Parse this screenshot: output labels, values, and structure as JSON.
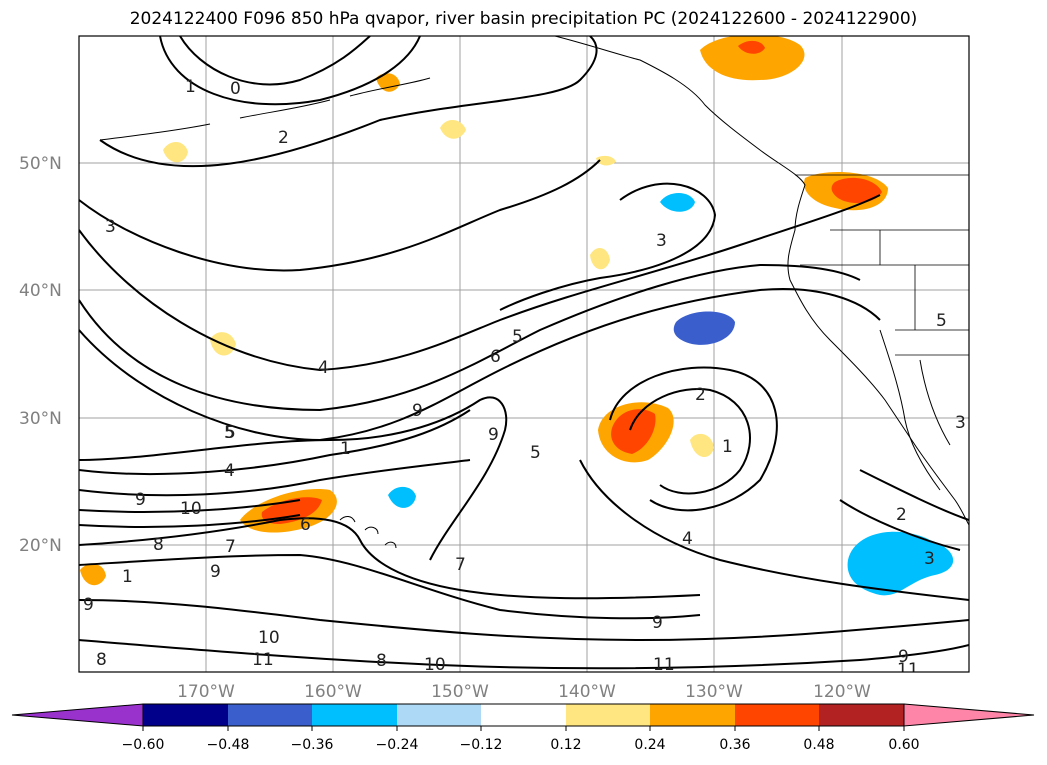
{
  "title": "2024122400 F096 850 hPa qvapor, river basin precipitation PC (2024122600 - 2024122900)",
  "latitude_labels": [
    "50°N",
    "40°N",
    "30°N",
    "20°N"
  ],
  "longitude_labels": [
    "170°W",
    "160°W",
    "150°W",
    "140°W",
    "130°W",
    "120°W"
  ],
  "colorbar": {
    "ticks": [
      "−0.60",
      "−0.48",
      "−0.36",
      "−0.24",
      "−0.12",
      "0.12",
      "0.24",
      "0.36",
      "0.48",
      "0.60"
    ],
    "colors": [
      "#9932cc",
      "#00008b",
      "#3a5fcd",
      "#00bfff",
      "#add8f6",
      "#ffffff",
      "#ffe680",
      "#ffa500",
      "#ff4500",
      "#b22222",
      "#ff85a8"
    ]
  },
  "contour_labels": [
    "0",
    "1",
    "2",
    "3",
    "4",
    "5",
    "6",
    "9",
    "10",
    "8",
    "7",
    "9",
    "10",
    "11",
    "8",
    "10",
    "11",
    "9",
    "3",
    "5",
    "6",
    "9",
    "5",
    "2",
    "1",
    "4",
    "3",
    "2",
    "3",
    "9",
    "11",
    "5",
    "4",
    "5",
    "1",
    "7",
    "9",
    "8",
    "1",
    "9"
  ],
  "chart_data": {
    "type": "heatmap",
    "projection": "PlateCarree",
    "lon_range": [
      -180,
      -110
    ],
    "lat_range": [
      10,
      60
    ],
    "fields": [
      "850 hPa qvapor contours (g/kg)",
      "river basin precipitation PC (shaded)"
    ],
    "contour_values": [
      0,
      1,
      2,
      3,
      4,
      5,
      6,
      7,
      8,
      9,
      10,
      11
    ],
    "shading_levels": [
      -0.6,
      -0.48,
      -0.36,
      -0.24,
      -0.12,
      0.12,
      0.24,
      0.36,
      0.48,
      0.6
    ],
    "grid": true
  }
}
